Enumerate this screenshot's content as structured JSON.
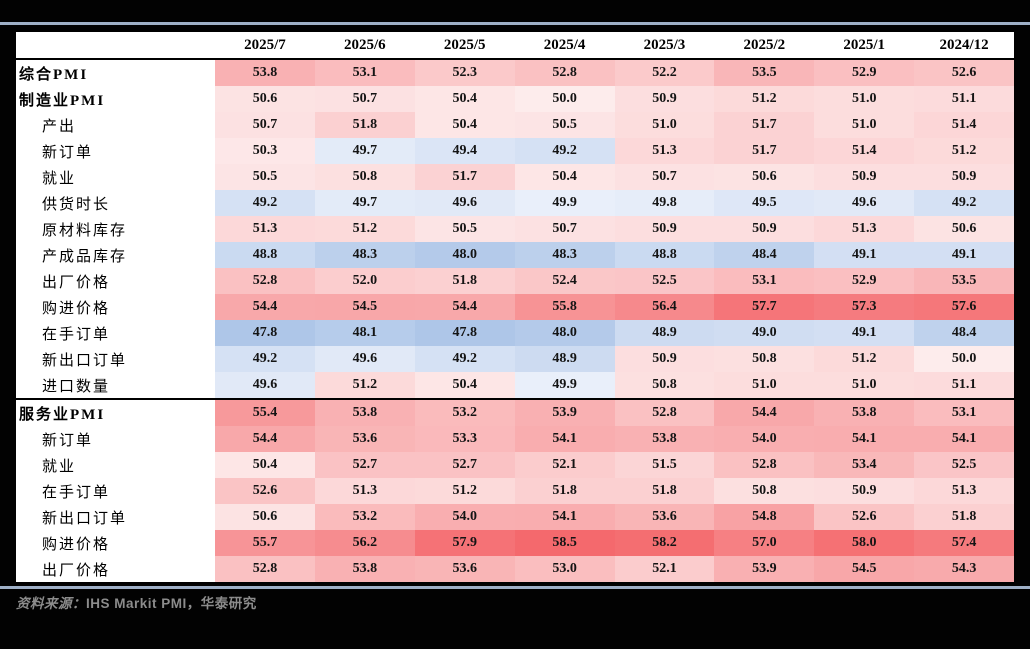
{
  "chart_data": {
    "type": "heatmap",
    "columns": [
      "2025/7",
      "2025/6",
      "2025/5",
      "2025/4",
      "2025/3",
      "2025/2",
      "2025/1",
      "2024/12"
    ],
    "rows": [
      {
        "label": "综合PMI",
        "level": 0,
        "section_start": false,
        "values": [
          53.8,
          53.1,
          52.3,
          52.8,
          52.2,
          53.5,
          52.9,
          52.6
        ]
      },
      {
        "label": "制造业PMI",
        "level": 0,
        "section_start": false,
        "values": [
          50.6,
          50.7,
          50.4,
          50.0,
          50.9,
          51.2,
          51.0,
          51.1
        ]
      },
      {
        "label": "产出",
        "level": 1,
        "section_start": false,
        "values": [
          50.7,
          51.8,
          50.4,
          50.5,
          51.0,
          51.7,
          51.0,
          51.4
        ]
      },
      {
        "label": "新订单",
        "level": 1,
        "section_start": false,
        "values": [
          50.3,
          49.7,
          49.4,
          49.2,
          51.3,
          51.7,
          51.4,
          51.2
        ]
      },
      {
        "label": "就业",
        "level": 1,
        "section_start": false,
        "values": [
          50.5,
          50.8,
          51.7,
          50.4,
          50.7,
          50.6,
          50.9,
          50.9
        ]
      },
      {
        "label": "供货时长",
        "level": 1,
        "section_start": false,
        "values": [
          49.2,
          49.7,
          49.6,
          49.9,
          49.8,
          49.5,
          49.6,
          49.2
        ]
      },
      {
        "label": "原材料库存",
        "level": 1,
        "section_start": false,
        "values": [
          51.3,
          51.2,
          50.5,
          50.7,
          50.9,
          50.9,
          51.3,
          50.6
        ]
      },
      {
        "label": "产成品库存",
        "level": 1,
        "section_start": false,
        "values": [
          48.8,
          48.3,
          48.0,
          48.3,
          48.8,
          48.4,
          49.1,
          49.1
        ]
      },
      {
        "label": "出厂价格",
        "level": 1,
        "section_start": false,
        "values": [
          52.8,
          52.0,
          51.8,
          52.4,
          52.5,
          53.1,
          52.9,
          53.5
        ]
      },
      {
        "label": "购进价格",
        "level": 1,
        "section_start": false,
        "values": [
          54.4,
          54.5,
          54.4,
          55.8,
          56.4,
          57.7,
          57.3,
          57.6
        ]
      },
      {
        "label": "在手订单",
        "level": 1,
        "section_start": false,
        "values": [
          47.8,
          48.1,
          47.8,
          48.0,
          48.9,
          49.0,
          49.1,
          48.4
        ]
      },
      {
        "label": "新出口订单",
        "level": 1,
        "section_start": false,
        "values": [
          49.2,
          49.6,
          49.2,
          48.9,
          50.9,
          50.8,
          51.2,
          50.0
        ]
      },
      {
        "label": "进口数量",
        "level": 1,
        "section_start": false,
        "values": [
          49.6,
          51.2,
          50.4,
          49.9,
          50.8,
          51.0,
          51.0,
          51.1
        ]
      },
      {
        "label": "服务业PMI",
        "level": 0,
        "section_start": true,
        "values": [
          55.4,
          53.8,
          53.2,
          53.9,
          52.8,
          54.4,
          53.8,
          53.1
        ]
      },
      {
        "label": "新订单",
        "level": 1,
        "section_start": false,
        "values": [
          54.4,
          53.6,
          53.3,
          54.1,
          53.8,
          54.0,
          54.1,
          54.1
        ]
      },
      {
        "label": "就业",
        "level": 1,
        "section_start": false,
        "values": [
          50.4,
          52.7,
          52.7,
          52.1,
          51.5,
          52.8,
          53.4,
          52.5
        ]
      },
      {
        "label": "在手订单",
        "level": 1,
        "section_start": false,
        "values": [
          52.6,
          51.3,
          51.2,
          51.8,
          51.8,
          50.8,
          50.9,
          51.3
        ]
      },
      {
        "label": "新出口订单",
        "level": 1,
        "section_start": false,
        "values": [
          50.6,
          53.2,
          54.0,
          54.1,
          53.6,
          54.8,
          52.6,
          51.8
        ]
      },
      {
        "label": "购进价格",
        "level": 1,
        "section_start": false,
        "values": [
          55.7,
          56.2,
          57.9,
          58.5,
          58.2,
          57.0,
          58.0,
          57.4
        ]
      },
      {
        "label": "出厂价格",
        "level": 1,
        "section_start": false,
        "values": [
          52.8,
          53.8,
          53.6,
          53.0,
          52.1,
          53.9,
          54.5,
          54.3
        ]
      }
    ],
    "heatmap_scale": {
      "midpoint": 50,
      "low_anchor": {
        "value": 47.8,
        "color": "#aec6e8"
      },
      "high_anchor": {
        "value": 58.5,
        "color": "#f4696d"
      },
      "mid_low_color": "#e9effa",
      "mid_high_color": "#fdecec"
    }
  },
  "footer": {
    "source_label": "资料来源：",
    "source_text": "IHS Markit PMI，华泰研究"
  },
  "colors": {
    "background": "#000000",
    "rule": "#9fb0c7",
    "table_background": "#ffffff",
    "table_border": "#000000",
    "footer_text": "#8c8c8c"
  }
}
